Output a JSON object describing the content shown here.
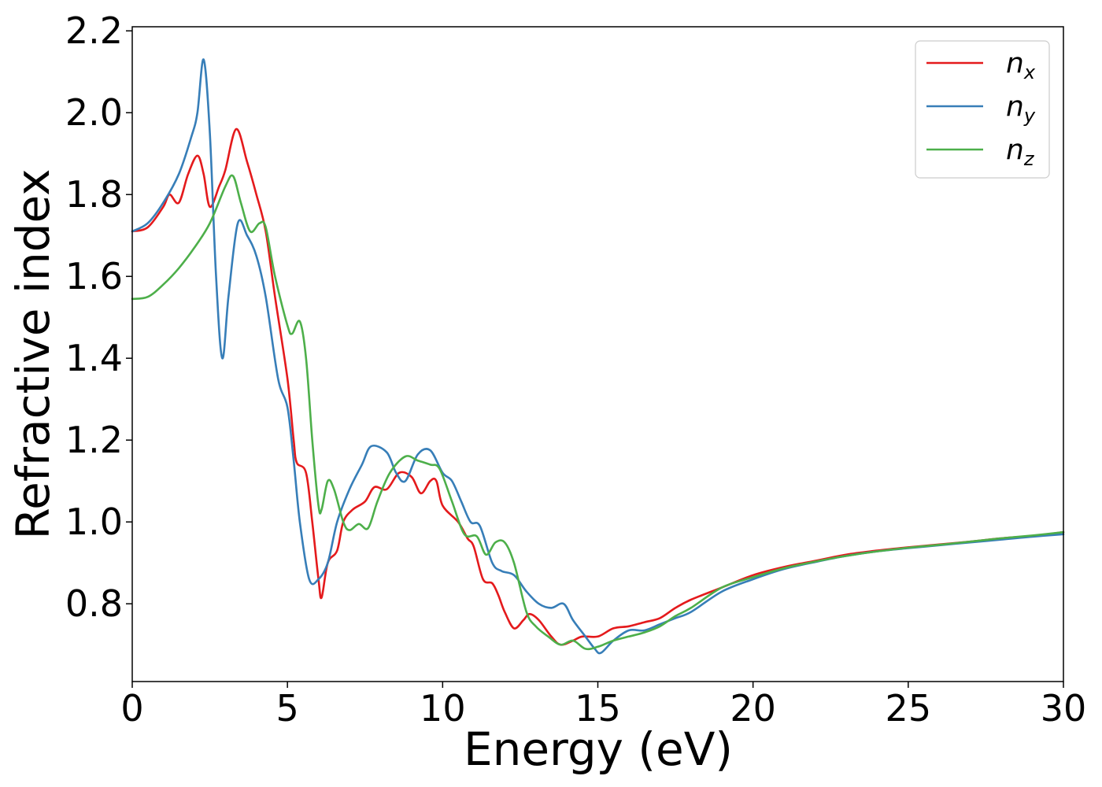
{
  "chart_data": {
    "type": "line",
    "title": "",
    "xlabel": "Energy (eV)",
    "ylabel": "Refractive index",
    "xlim": [
      0,
      30
    ],
    "ylim": [
      0.61,
      2.21
    ],
    "xticks": [
      0,
      5,
      10,
      15,
      20,
      25,
      30
    ],
    "xtick_labels": [
      "0",
      "5",
      "10",
      "15",
      "20",
      "25",
      "30"
    ],
    "yticks": [
      0.8,
      1.0,
      1.2,
      1.4,
      1.6,
      1.8,
      2.0,
      2.2
    ],
    "ytick_labels": [
      "0.8",
      "1.0",
      "1.2",
      "1.4",
      "1.6",
      "1.8",
      "2.0",
      "2.2"
    ],
    "grid": false,
    "legend": {
      "position": "top-right"
    },
    "series": [
      {
        "name": "n",
        "sub": "x",
        "color": "#e41a1c",
        "points": [
          [
            0,
            1.71
          ],
          [
            0.5,
            1.72
          ],
          [
            1.0,
            1.77
          ],
          [
            1.2,
            1.8
          ],
          [
            1.5,
            1.78
          ],
          [
            1.8,
            1.85
          ],
          [
            2.1,
            1.895
          ],
          [
            2.3,
            1.85
          ],
          [
            2.5,
            1.77
          ],
          [
            2.8,
            1.82
          ],
          [
            3.0,
            1.86
          ],
          [
            3.35,
            1.96
          ],
          [
            3.7,
            1.88
          ],
          [
            4.0,
            1.8
          ],
          [
            4.3,
            1.71
          ],
          [
            4.6,
            1.55
          ],
          [
            5.0,
            1.35
          ],
          [
            5.2,
            1.2
          ],
          [
            5.3,
            1.145
          ],
          [
            5.6,
            1.12
          ],
          [
            5.8,
            1.0
          ],
          [
            6.0,
            0.86
          ],
          [
            6.1,
            0.815
          ],
          [
            6.3,
            0.9
          ],
          [
            6.6,
            0.93
          ],
          [
            6.8,
            1.0
          ],
          [
            7.1,
            1.03
          ],
          [
            7.5,
            1.05
          ],
          [
            7.8,
            1.085
          ],
          [
            8.2,
            1.08
          ],
          [
            8.6,
            1.12
          ],
          [
            9.0,
            1.11
          ],
          [
            9.3,
            1.07
          ],
          [
            9.6,
            1.1
          ],
          [
            9.8,
            1.1
          ],
          [
            10.0,
            1.04
          ],
          [
            10.5,
            1.0
          ],
          [
            10.8,
            0.96
          ],
          [
            11.0,
            0.94
          ],
          [
            11.3,
            0.86
          ],
          [
            11.6,
            0.85
          ],
          [
            11.8,
            0.82
          ],
          [
            12.0,
            0.78
          ],
          [
            12.3,
            0.74
          ],
          [
            12.6,
            0.76
          ],
          [
            12.8,
            0.775
          ],
          [
            13.1,
            0.76
          ],
          [
            13.5,
            0.72
          ],
          [
            13.8,
            0.7
          ],
          [
            14.2,
            0.71
          ],
          [
            14.5,
            0.72
          ],
          [
            15.0,
            0.72
          ],
          [
            15.5,
            0.74
          ],
          [
            16.0,
            0.745
          ],
          [
            16.5,
            0.755
          ],
          [
            17.0,
            0.765
          ],
          [
            17.5,
            0.79
          ],
          [
            18.0,
            0.81
          ],
          [
            19.0,
            0.84
          ],
          [
            20.0,
            0.87
          ],
          [
            21.0,
            0.89
          ],
          [
            22.0,
            0.905
          ],
          [
            23.0,
            0.92
          ],
          [
            24.0,
            0.93
          ],
          [
            25.0,
            0.938
          ],
          [
            26.0,
            0.945
          ],
          [
            27.0,
            0.952
          ],
          [
            28.0,
            0.96
          ],
          [
            29.0,
            0.966
          ],
          [
            30.0,
            0.975
          ]
        ]
      },
      {
        "name": "n",
        "sub": "y",
        "color": "#377eb8",
        "points": [
          [
            0,
            1.71
          ],
          [
            0.5,
            1.73
          ],
          [
            1.0,
            1.78
          ],
          [
            1.5,
            1.85
          ],
          [
            1.9,
            1.94
          ],
          [
            2.1,
            2.0
          ],
          [
            2.3,
            2.13
          ],
          [
            2.5,
            1.95
          ],
          [
            2.7,
            1.6
          ],
          [
            2.9,
            1.4
          ],
          [
            3.1,
            1.55
          ],
          [
            3.4,
            1.73
          ],
          [
            3.7,
            1.7
          ],
          [
            4.0,
            1.65
          ],
          [
            4.3,
            1.55
          ],
          [
            4.7,
            1.35
          ],
          [
            5.0,
            1.28
          ],
          [
            5.2,
            1.15
          ],
          [
            5.4,
            1.0
          ],
          [
            5.7,
            0.86
          ],
          [
            6.0,
            0.86
          ],
          [
            6.3,
            0.9
          ],
          [
            6.6,
            1.0
          ],
          [
            7.0,
            1.08
          ],
          [
            7.4,
            1.14
          ],
          [
            7.7,
            1.185
          ],
          [
            8.2,
            1.17
          ],
          [
            8.5,
            1.12
          ],
          [
            8.8,
            1.1
          ],
          [
            9.2,
            1.165
          ],
          [
            9.6,
            1.175
          ],
          [
            10.0,
            1.12
          ],
          [
            10.3,
            1.1
          ],
          [
            10.6,
            1.05
          ],
          [
            10.9,
            1.0
          ],
          [
            11.2,
            0.99
          ],
          [
            11.6,
            0.9
          ],
          [
            11.9,
            0.88
          ],
          [
            12.3,
            0.87
          ],
          [
            12.7,
            0.83
          ],
          [
            13.1,
            0.8
          ],
          [
            13.5,
            0.79
          ],
          [
            13.9,
            0.8
          ],
          [
            14.2,
            0.76
          ],
          [
            14.6,
            0.72
          ],
          [
            14.9,
            0.69
          ],
          [
            15.1,
            0.68
          ],
          [
            15.5,
            0.71
          ],
          [
            16.0,
            0.735
          ],
          [
            16.5,
            0.735
          ],
          [
            17.0,
            0.75
          ],
          [
            17.5,
            0.765
          ],
          [
            18.0,
            0.78
          ],
          [
            19.0,
            0.83
          ],
          [
            20.0,
            0.86
          ],
          [
            21.0,
            0.885
          ],
          [
            22.0,
            0.902
          ],
          [
            23.0,
            0.917
          ],
          [
            24.0,
            0.928
          ],
          [
            25.0,
            0.936
          ],
          [
            26.0,
            0.943
          ],
          [
            27.0,
            0.95
          ],
          [
            28.0,
            0.957
          ],
          [
            29.0,
            0.964
          ],
          [
            30.0,
            0.97
          ]
        ]
      },
      {
        "name": "n",
        "sub": "z",
        "color": "#4daf4a",
        "points": [
          [
            0,
            1.545
          ],
          [
            0.5,
            1.55
          ],
          [
            1.0,
            1.58
          ],
          [
            1.5,
            1.62
          ],
          [
            2.0,
            1.67
          ],
          [
            2.5,
            1.73
          ],
          [
            3.0,
            1.82
          ],
          [
            3.25,
            1.845
          ],
          [
            3.5,
            1.78
          ],
          [
            3.8,
            1.71
          ],
          [
            4.1,
            1.73
          ],
          [
            4.3,
            1.72
          ],
          [
            4.6,
            1.6
          ],
          [
            5.0,
            1.48
          ],
          [
            5.15,
            1.46
          ],
          [
            5.4,
            1.49
          ],
          [
            5.6,
            1.4
          ],
          [
            5.8,
            1.2
          ],
          [
            6.0,
            1.04
          ],
          [
            6.1,
            1.03
          ],
          [
            6.3,
            1.1
          ],
          [
            6.5,
            1.08
          ],
          [
            6.8,
            1.0
          ],
          [
            7.0,
            0.98
          ],
          [
            7.3,
            0.995
          ],
          [
            7.6,
            0.985
          ],
          [
            7.9,
            1.05
          ],
          [
            8.3,
            1.12
          ],
          [
            8.8,
            1.16
          ],
          [
            9.2,
            1.15
          ],
          [
            9.6,
            1.14
          ],
          [
            9.9,
            1.13
          ],
          [
            10.3,
            1.05
          ],
          [
            10.7,
            0.97
          ],
          [
            11.1,
            0.965
          ],
          [
            11.4,
            0.92
          ],
          [
            11.7,
            0.95
          ],
          [
            12.0,
            0.95
          ],
          [
            12.3,
            0.9
          ],
          [
            12.7,
            0.78
          ],
          [
            13.0,
            0.745
          ],
          [
            13.4,
            0.72
          ],
          [
            13.8,
            0.7
          ],
          [
            14.2,
            0.71
          ],
          [
            14.6,
            0.69
          ],
          [
            15.0,
            0.695
          ],
          [
            15.5,
            0.71
          ],
          [
            16.0,
            0.72
          ],
          [
            16.5,
            0.73
          ],
          [
            17.0,
            0.745
          ],
          [
            17.5,
            0.77
          ],
          [
            18.0,
            0.79
          ],
          [
            19.0,
            0.84
          ],
          [
            20.0,
            0.865
          ],
          [
            21.0,
            0.887
          ],
          [
            22.0,
            0.903
          ],
          [
            23.0,
            0.917
          ],
          [
            24.0,
            0.928
          ],
          [
            25.0,
            0.937
          ],
          [
            26.0,
            0.944
          ],
          [
            27.0,
            0.952
          ],
          [
            28.0,
            0.96
          ],
          [
            29.0,
            0.967
          ],
          [
            30.0,
            0.975
          ]
        ]
      }
    ]
  }
}
